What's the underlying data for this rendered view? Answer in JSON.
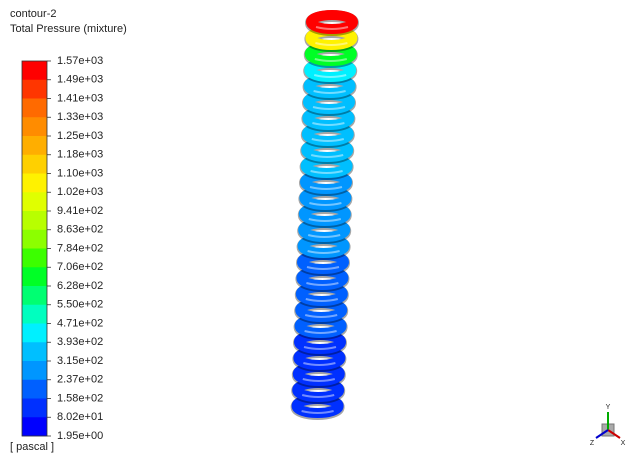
{
  "header": {
    "title": "contour-2",
    "subtitle": "Total Pressure (mixture)"
  },
  "colorbar": {
    "labels": [
      "1.57e+03",
      "1.49e+03",
      "1.41e+03",
      "1.33e+03",
      "1.25e+03",
      "1.18e+03",
      "1.10e+03",
      "1.02e+03",
      "9.41e+02",
      "8.63e+02",
      "7.84e+02",
      "7.06e+02",
      "6.28e+02",
      "5.50e+02",
      "4.71e+02",
      "3.93e+02",
      "3.15e+02",
      "2.37e+02",
      "1.58e+02",
      "8.02e+01",
      "1.95e+00"
    ],
    "colors": [
      "#ff0000",
      "#ff3600",
      "#ff6a00",
      "#ff8c00",
      "#ffae00",
      "#ffd000",
      "#fff200",
      "#e0ff00",
      "#b8ff00",
      "#8cff00",
      "#3cff00",
      "#00ff26",
      "#00ff72",
      "#00ffbf",
      "#00f0ff",
      "#00bfff",
      "#0096ff",
      "#0060ff",
      "#0030ff",
      "#0000ff"
    ],
    "unit": "[ pascal ]"
  },
  "triad": {
    "x": "X",
    "y": "Y",
    "z": "Z"
  }
}
